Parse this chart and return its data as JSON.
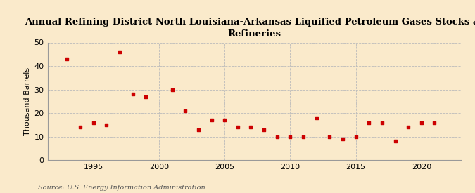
{
  "title": "Annual Refining District North Louisiana-Arkansas Liquified Petroleum Gases Stocks at\nRefineries",
  "ylabel": "Thousand Barrels",
  "source": "Source: U.S. Energy Information Administration",
  "background_color": "#faeacb",
  "marker_color": "#cc0000",
  "years": [
    1993,
    1994,
    1995,
    1996,
    1997,
    1998,
    1999,
    2001,
    2002,
    2003,
    2004,
    2005,
    2006,
    2007,
    2008,
    2009,
    2010,
    2011,
    2012,
    2013,
    2014,
    2015,
    2016,
    2017,
    2018,
    2019,
    2020,
    2021
  ],
  "values": [
    43,
    14,
    16,
    15,
    46,
    28,
    27,
    30,
    21,
    13,
    17,
    17,
    14,
    14,
    13,
    10,
    10,
    10,
    18,
    10,
    9,
    10,
    16,
    16,
    8,
    14,
    16,
    16
  ],
  "xlim": [
    1991.5,
    2023
  ],
  "ylim": [
    0,
    50
  ],
  "yticks": [
    0,
    10,
    20,
    30,
    40,
    50
  ],
  "xticks": [
    1995,
    2000,
    2005,
    2010,
    2015,
    2020
  ],
  "grid_color": "#bbbbbb",
  "title_fontsize": 9.5,
  "axis_fontsize": 8,
  "source_fontsize": 7
}
